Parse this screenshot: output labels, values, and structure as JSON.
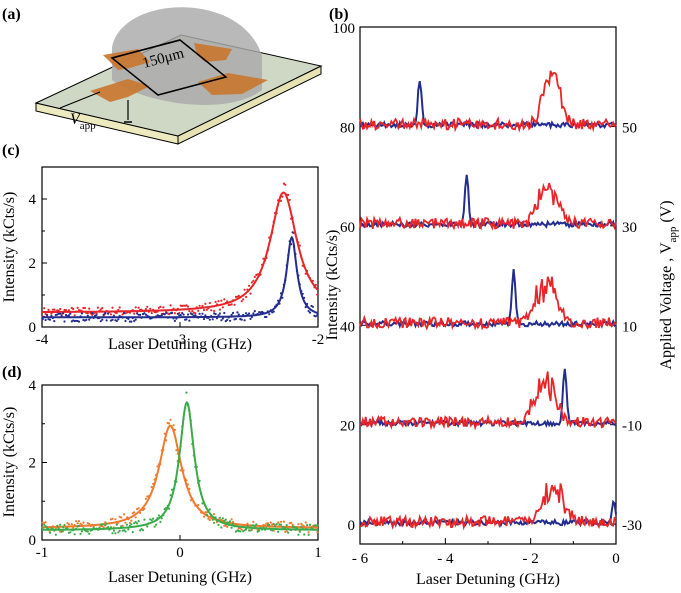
{
  "panel_labels": {
    "a": "(a)",
    "b": "(b)",
    "c": "(c)",
    "d": "(d)"
  },
  "schematic": {
    "scale_label": "150μm",
    "voltage_symbol": "V",
    "voltage_subscript": "app"
  },
  "colors": {
    "red": "#e8262a",
    "blue": "#232d8f",
    "orange": "#f07a2e",
    "green": "#3aab4a",
    "gray_dome": "#a9a9ab",
    "electrode": "#c9762f",
    "substrate": "#cfd8c4",
    "substrate_side": "#eeeac0"
  },
  "chart_data": [
    {
      "panel": "c",
      "type": "scatter",
      "xlabel": "Laser Detuning (GHz)",
      "ylabel": "Intensity (kCts/s)",
      "xlim": [
        -4,
        -2
      ],
      "ylim": [
        0,
        5
      ],
      "xticks": [
        "-4",
        "-3",
        "-2"
      ],
      "yticks": [
        "0",
        "2",
        "4"
      ],
      "series": [
        {
          "color": "red",
          "model": "lorentzian",
          "x0": -2.25,
          "gamma": 0.12,
          "amplitude": 3.75,
          "baseline": 0.45
        },
        {
          "color": "blue",
          "model": "lorentzian",
          "x0": -2.19,
          "gamma": 0.045,
          "amplitude": 2.5,
          "baseline": 0.3
        }
      ]
    },
    {
      "panel": "d",
      "type": "scatter",
      "xlabel": "Laser Detuning (GHz)",
      "ylabel": "Intensity (kCts/s)",
      "xlim": [
        -1,
        1
      ],
      "ylim": [
        0,
        4
      ],
      "xticks": [
        "-1",
        "0",
        "1"
      ],
      "yticks": [
        "0",
        "2",
        "4"
      ],
      "series": [
        {
          "color": "orange",
          "model": "lorentzian",
          "x0": -0.07,
          "gamma": 0.1,
          "amplitude": 2.65,
          "baseline": 0.3
        },
        {
          "color": "green",
          "model": "lorentzian",
          "x0": 0.05,
          "gamma": 0.065,
          "amplitude": 3.3,
          "baseline": 0.25
        }
      ]
    },
    {
      "panel": "b",
      "type": "line",
      "xlabel": "Laser Detuning (GHz)",
      "ylabel": "Intensity (kCts/s)",
      "right_label": "Applied Voltage , V",
      "right_label_sub": "app",
      "right_label_unit": "(V)",
      "xlim": [
        -6,
        0
      ],
      "ylim": [
        -4,
        100
      ],
      "xticks": [
        "- 6",
        "- 4",
        "- 2",
        "0"
      ],
      "yticks": [
        "0",
        "20",
        "40",
        "60",
        "80",
        "100"
      ],
      "right_ticks": [
        "-30",
        "-10",
        "10",
        "30",
        "50"
      ],
      "offsets": [
        0,
        20,
        40,
        60,
        80
      ],
      "traces": [
        {
          "voltage": -30,
          "offset": 0,
          "blue_peak_x": -0.05,
          "blue_peak_h": 4,
          "red_peaks": [
            [
              -1.6,
              6
            ],
            [
              -1.3,
              5
            ]
          ]
        },
        {
          "voltage": -10,
          "offset": 20,
          "blue_peak_x": -1.2,
          "blue_peak_h": 11,
          "red_peaks": [
            [
              -1.8,
              8
            ],
            [
              -1.5,
              6
            ]
          ]
        },
        {
          "voltage": 10,
          "offset": 40,
          "blue_peak_x": -2.4,
          "blue_peak_h": 11,
          "red_peaks": [
            [
              -1.8,
              6
            ],
            [
              -1.5,
              7
            ]
          ]
        },
        {
          "voltage": 30,
          "offset": 60,
          "blue_peak_x": -3.5,
          "blue_peak_h": 10,
          "red_peaks": [
            [
              -1.7,
              6
            ],
            [
              -1.4,
              5
            ]
          ]
        },
        {
          "voltage": 50,
          "offset": 80,
          "blue_peak_x": -4.6,
          "blue_peak_h": 9,
          "red_peaks": [
            [
              -1.6,
              7
            ],
            [
              -1.4,
              6
            ]
          ]
        }
      ]
    }
  ]
}
